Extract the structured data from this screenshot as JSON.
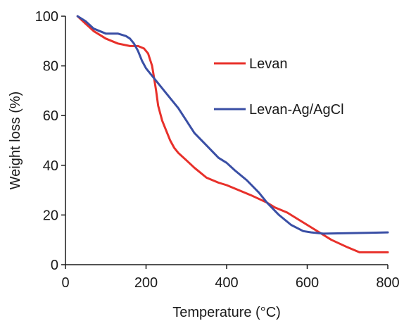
{
  "chart_data": {
    "type": "line",
    "title": "",
    "xlabel": "Temperature (°C)",
    "ylabel": "Weight loss (%)",
    "xlim": [
      0,
      800
    ],
    "ylim": [
      0,
      100
    ],
    "xticks": [
      0,
      200,
      400,
      600,
      800
    ],
    "yticks": [
      0,
      20,
      40,
      60,
      80,
      100
    ],
    "grid": false,
    "legend_position": "right",
    "series": [
      {
        "name": "Levan",
        "color": "#e8302a",
        "x": [
          30,
          50,
          70,
          100,
          130,
          160,
          180,
          195,
          205,
          215,
          220,
          225,
          230,
          240,
          250,
          260,
          270,
          280,
          300,
          320,
          350,
          380,
          400,
          430,
          460,
          500,
          520,
          550,
          580,
          600,
          630,
          660,
          700,
          730,
          760,
          800
        ],
        "y": [
          100,
          97,
          94,
          91,
          89,
          88,
          88,
          87,
          85,
          80,
          75,
          70,
          64,
          58,
          54,
          50,
          47,
          45,
          42,
          39,
          35,
          33,
          32,
          30,
          28,
          25,
          23,
          21,
          18,
          16,
          13,
          10,
          7,
          5,
          5,
          5
        ]
      },
      {
        "name": "Levan-Ag/AgCl",
        "color": "#3a4fa5",
        "x": [
          30,
          50,
          70,
          100,
          130,
          150,
          160,
          170,
          180,
          190,
          200,
          220,
          250,
          280,
          300,
          320,
          350,
          380,
          400,
          420,
          450,
          480,
          500,
          530,
          560,
          590,
          610,
          640,
          700,
          750,
          800
        ],
        "y": [
          100,
          98,
          95,
          93,
          93,
          92,
          91,
          89,
          86,
          82,
          79,
          75,
          69,
          63,
          58,
          53,
          48,
          43,
          41,
          38,
          34,
          29,
          25,
          20,
          16,
          13.5,
          13,
          12.5,
          12.7,
          12.8,
          13
        ]
      }
    ]
  }
}
